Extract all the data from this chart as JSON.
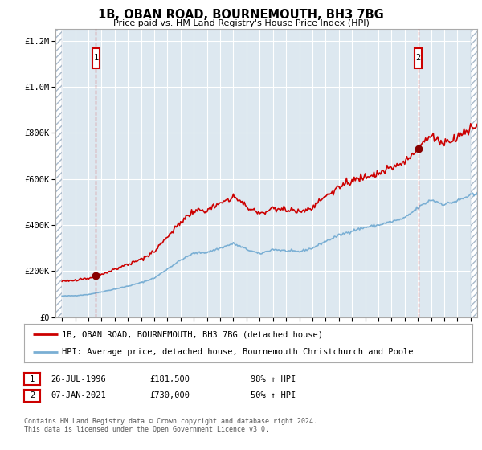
{
  "title": "1B, OBAN ROAD, BOURNEMOUTH, BH3 7BG",
  "subtitle": "Price paid vs. HM Land Registry's House Price Index (HPI)",
  "legend_line1": "1B, OBAN ROAD, BOURNEMOUTH, BH3 7BG (detached house)",
  "legend_line2": "HPI: Average price, detached house, Bournemouth Christchurch and Poole",
  "sale1_date": "26-JUL-1996",
  "sale1_price": "£181,500",
  "sale1_hpi": "98% ↑ HPI",
  "sale1_x": 1996.57,
  "sale1_y": 181500,
  "sale2_date": "07-JAN-2021",
  "sale2_price": "£730,000",
  "sale2_hpi": "50% ↑ HPI",
  "sale2_x": 2021.03,
  "sale2_y": 730000,
  "footer": "Contains HM Land Registry data © Crown copyright and database right 2024.\nThis data is licensed under the Open Government Licence v3.0.",
  "ylim": [
    0,
    1250000
  ],
  "xlim": [
    1993.5,
    2025.5
  ],
  "red_color": "#cc0000",
  "blue_color": "#7aafd4",
  "background_color": "#dde8f0",
  "grid_color": "#ffffff",
  "border_color": "#aaaaaa"
}
